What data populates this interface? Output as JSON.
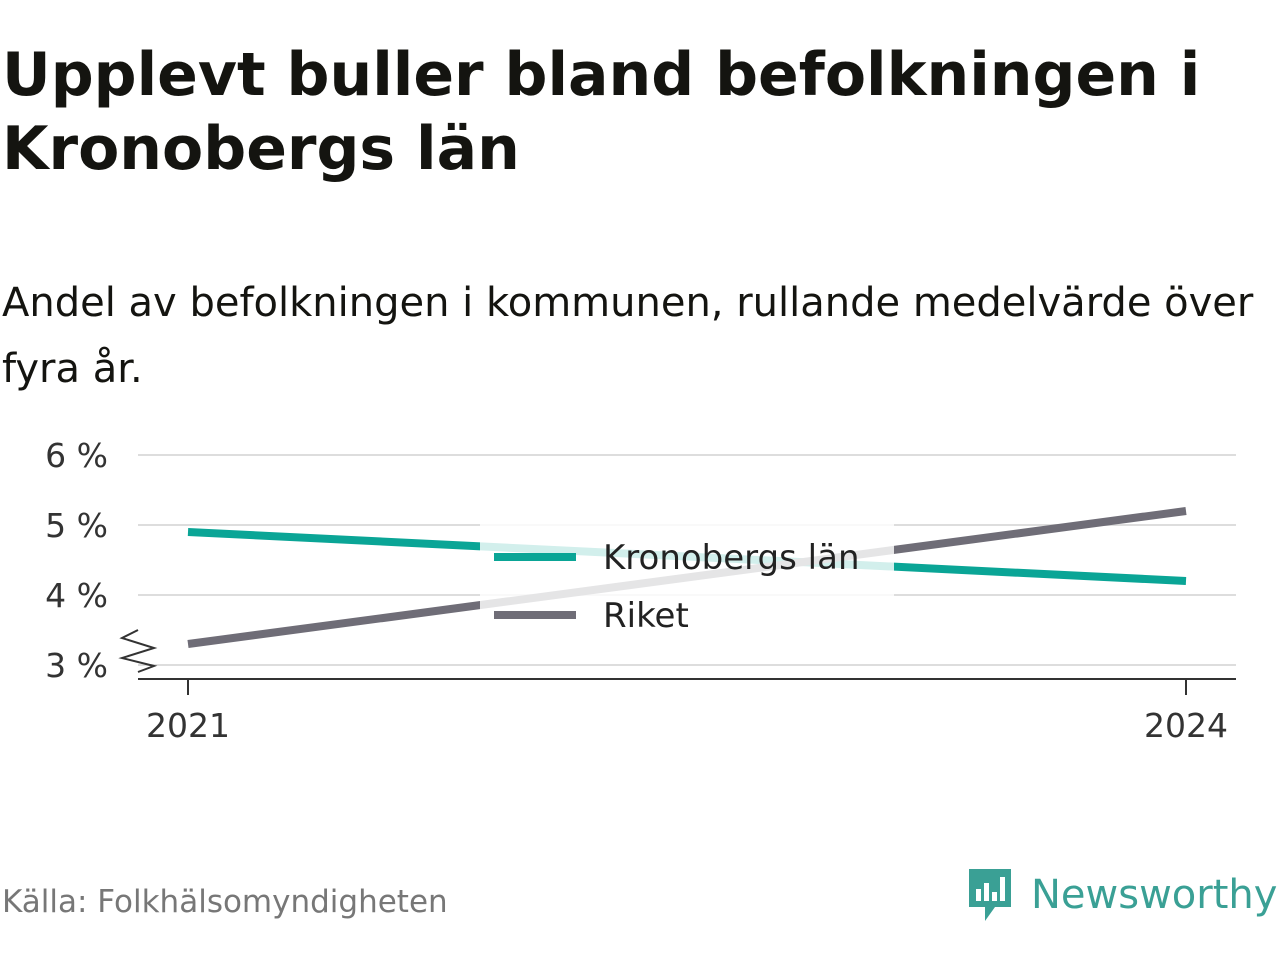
{
  "header": {
    "title": "Upplevt buller bland befolkningen i Kronobergs län",
    "subtitle": "Andel av befolkningen i kommunen, rullande medelvärde över fyra år."
  },
  "footer": {
    "source": "Källa: Folkhälsomyndigheten",
    "brand": "Newsworthy",
    "brand_icon": "newsworthy-logo-icon"
  },
  "colors": {
    "kronoberg": "#0aa596",
    "riket": "#6f6d77",
    "grid": "#dddddd",
    "axis": "#333333",
    "brand": "#3aa095"
  },
  "chart_data": {
    "type": "line",
    "x": [
      2021,
      2024
    ],
    "x_tick_labels": [
      "2021",
      "2024"
    ],
    "y_ticks": [
      3,
      4,
      5,
      6
    ],
    "y_tick_labels": [
      "3 %",
      "4 %",
      "5 %",
      "6 %"
    ],
    "ylim": [
      2.8,
      6
    ],
    "axis_break": true,
    "grid": true,
    "legend_position": "center",
    "series": [
      {
        "name": "Kronobergs län",
        "values": [
          4.9,
          4.2
        ],
        "color": "#0aa596"
      },
      {
        "name": "Riket",
        "values": [
          3.3,
          5.2
        ],
        "color": "#6f6d77"
      }
    ]
  }
}
